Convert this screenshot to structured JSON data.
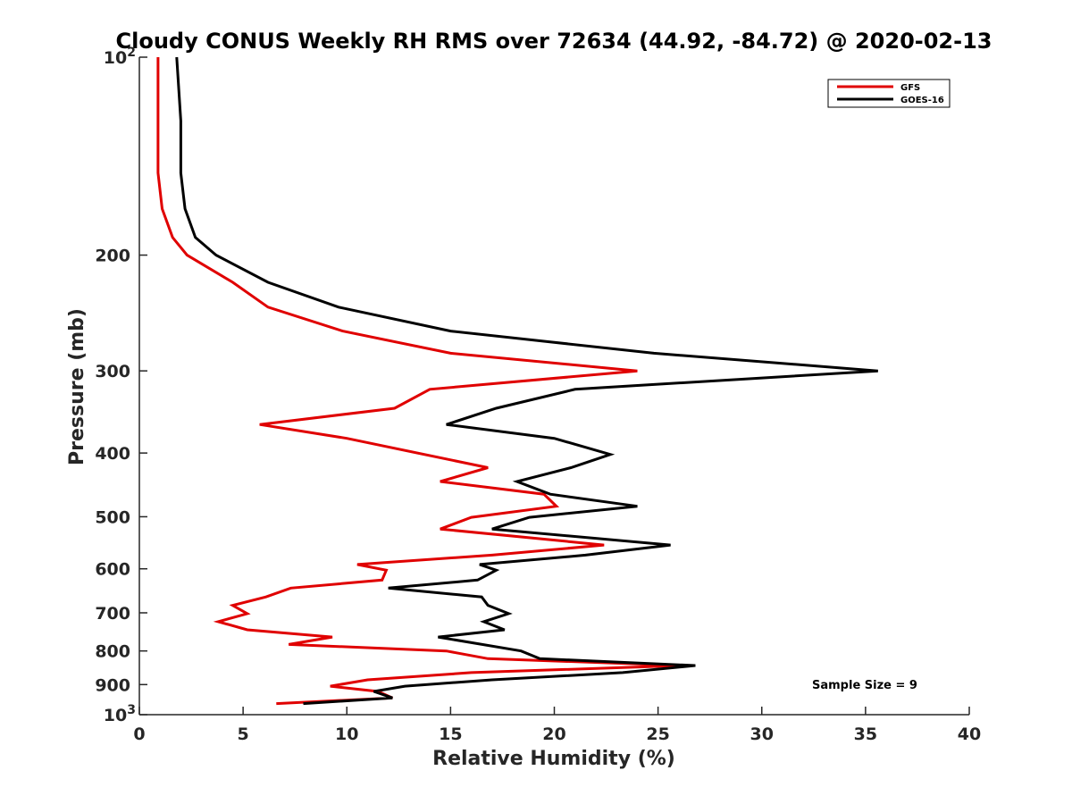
{
  "chart_data": {
    "type": "line",
    "title": "Cloudy CONUS Weekly RH RMS over 72634 (44.92, -84.72) @ 2020-02-13",
    "xlabel": "Relative Humidity (%)",
    "ylabel": "Pressure (mb)",
    "xlim": [
      0,
      40
    ],
    "ylim": [
      100,
      1000
    ],
    "yscale": "log",
    "y_reversed": true,
    "grid": false,
    "legend_position": "top-right",
    "x_ticks": [
      "0",
      "5",
      "10",
      "15",
      "20",
      "25",
      "30",
      "35",
      "40"
    ],
    "y_ticks": [
      {
        "value": 100,
        "label": "10",
        "sup": "2"
      },
      {
        "value": 200,
        "label": "200",
        "sup": ""
      },
      {
        "value": 300,
        "label": "300",
        "sup": ""
      },
      {
        "value": 400,
        "label": "400",
        "sup": ""
      },
      {
        "value": 500,
        "label": "500",
        "sup": ""
      },
      {
        "value": 600,
        "label": "600",
        "sup": ""
      },
      {
        "value": 700,
        "label": "700",
        "sup": ""
      },
      {
        "value": 800,
        "label": "800",
        "sup": ""
      },
      {
        "value": 900,
        "label": "900",
        "sup": ""
      },
      {
        "value": 1000,
        "label": "10",
        "sup": "3"
      }
    ],
    "annotation": "Sample Size = 9",
    "series": [
      {
        "name": "GFS",
        "color": "#e00000",
        "points": [
          [
            0.9,
            100
          ],
          [
            0.9,
            150
          ],
          [
            1.1,
            170
          ],
          [
            1.6,
            188
          ],
          [
            2.3,
            200
          ],
          [
            4.5,
            220
          ],
          [
            6.2,
            240
          ],
          [
            9.8,
            261
          ],
          [
            15.0,
            282
          ],
          [
            24.0,
            300
          ],
          [
            14.0,
            320
          ],
          [
            12.3,
            342
          ],
          [
            5.8,
            362
          ],
          [
            10.0,
            380
          ],
          [
            16.8,
            421
          ],
          [
            14.5,
            442
          ],
          [
            19.5,
            462
          ],
          [
            20.1,
            482
          ],
          [
            16.0,
            501
          ],
          [
            14.5,
            522
          ],
          [
            22.4,
            552
          ],
          [
            17.0,
            572
          ],
          [
            10.5,
            591
          ],
          [
            11.9,
            603
          ],
          [
            11.7,
            624
          ],
          [
            7.3,
            642
          ],
          [
            6.1,
            662
          ],
          [
            4.5,
            682
          ],
          [
            5.2,
            702
          ],
          [
            3.8,
            722
          ],
          [
            5.2,
            743
          ],
          [
            9.3,
            762
          ],
          [
            7.2,
            782
          ],
          [
            14.8,
            800
          ],
          [
            16.8,
            822
          ],
          [
            26.2,
            842
          ],
          [
            16.0,
            863
          ],
          [
            11.0,
            885
          ],
          [
            9.2,
            905
          ],
          [
            11.5,
            922
          ],
          [
            12.2,
            943
          ],
          [
            6.6,
            962
          ]
        ]
      },
      {
        "name": "GOES-16",
        "color": "#000000",
        "points": [
          [
            1.8,
            100
          ],
          [
            2.0,
            125
          ],
          [
            2.0,
            150
          ],
          [
            2.2,
            170
          ],
          [
            2.7,
            188
          ],
          [
            3.7,
            200
          ],
          [
            6.2,
            220
          ],
          [
            9.6,
            240
          ],
          [
            15.0,
            261
          ],
          [
            24.8,
            282
          ],
          [
            35.6,
            300
          ],
          [
            21.0,
            320
          ],
          [
            17.2,
            342
          ],
          [
            14.8,
            362
          ],
          [
            20.0,
            380
          ],
          [
            22.7,
            402
          ],
          [
            20.8,
            421
          ],
          [
            18.2,
            442
          ],
          [
            19.8,
            462
          ],
          [
            24.0,
            482
          ],
          [
            18.8,
            501
          ],
          [
            17.0,
            522
          ],
          [
            25.6,
            552
          ],
          [
            21.5,
            572
          ],
          [
            16.4,
            591
          ],
          [
            17.2,
            603
          ],
          [
            16.3,
            624
          ],
          [
            12.0,
            642
          ],
          [
            16.5,
            662
          ],
          [
            16.8,
            682
          ],
          [
            17.8,
            702
          ],
          [
            16.6,
            722
          ],
          [
            17.6,
            743
          ],
          [
            14.4,
            762
          ],
          [
            18.4,
            800
          ],
          [
            19.3,
            822
          ],
          [
            26.8,
            842
          ],
          [
            23.3,
            863
          ],
          [
            17.0,
            885
          ],
          [
            12.8,
            905
          ],
          [
            11.3,
            922
          ],
          [
            12.2,
            943
          ],
          [
            7.9,
            962
          ]
        ]
      }
    ]
  }
}
